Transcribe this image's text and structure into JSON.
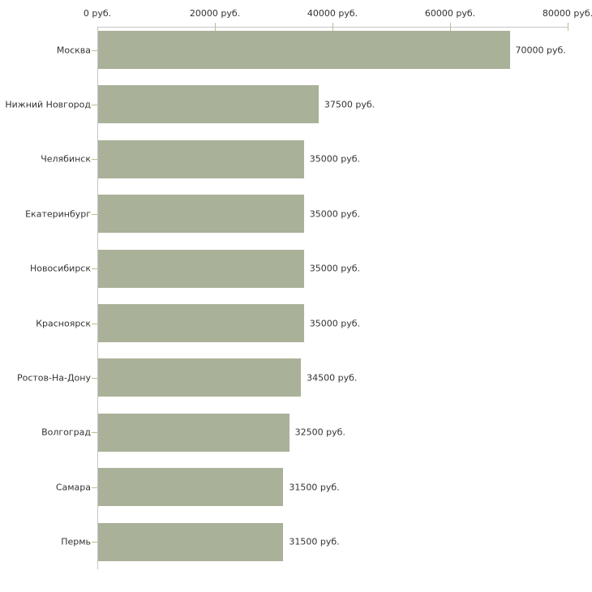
{
  "chart_data": {
    "type": "bar",
    "orientation": "horizontal",
    "title": "",
    "xlabel": "",
    "ylabel": "",
    "categories": [
      "Москва",
      "Нижний Новгород",
      "Челябинск",
      "Екатеринбург",
      "Новосибирск",
      "Красноярск",
      "Ростов-На-Дону",
      "Волгоград",
      "Самара",
      "Пермь"
    ],
    "values": [
      70000,
      37500,
      35000,
      35000,
      35000,
      35000,
      34500,
      32500,
      31500,
      31500
    ],
    "value_labels": [
      "70000 руб.",
      "37500 руб.",
      "35000 руб.",
      "35000 руб.",
      "35000 руб.",
      "35000 руб.",
      "34500 руб.",
      "32500 руб.",
      "31500 руб.",
      "31500 руб."
    ],
    "x_tick_labels": [
      "0 руб.",
      "20000 руб.",
      "40000 руб.",
      "60000 руб.",
      "80000 руб."
    ],
    "x_tick_values": [
      0,
      20000,
      40000,
      60000,
      80000
    ],
    "xlim": [
      0,
      80000
    ],
    "grid": false,
    "legend": false,
    "axis_position": "top",
    "colors": {
      "bar": "#aab199",
      "axis_line": "#c6c6c6",
      "tick_mark": "#bcbc94",
      "text": "#333333",
      "background": "#ffffff"
    }
  }
}
